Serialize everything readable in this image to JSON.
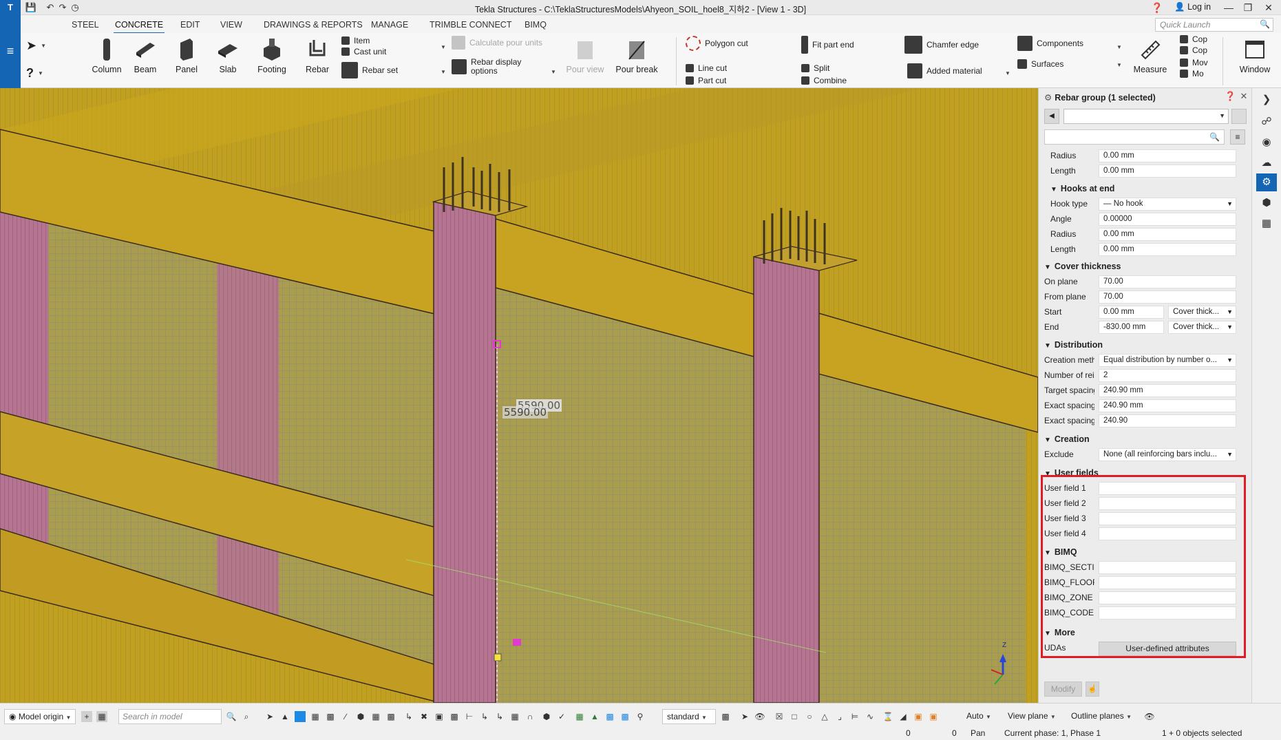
{
  "window": {
    "title": "Tekla Structures - C:\\TeklaStructuresModels\\Ahyeon_SOIL_hoel8_지하2 - [View 1 - 3D]",
    "login_label": "Log in"
  },
  "ribbon": {
    "tabs": [
      "STEEL",
      "CONCRETE",
      "EDIT",
      "VIEW",
      "DRAWINGS & REPORTS",
      "MANAGE",
      "TRIMBLE CONNECT",
      "BIMQ"
    ],
    "active_tab": "CONCRETE",
    "quick_launch_placeholder": "Quick Launch",
    "buttons": {
      "column": "Column",
      "beam": "Beam",
      "panel": "Panel",
      "slab": "Slab",
      "footing": "Footing",
      "rebar": "Rebar",
      "item": "Item",
      "cast_unit": "Cast unit",
      "rebar_set": "Rebar set",
      "calculate_pour_units": "Calculate pour units",
      "rebar_display_options_1": "Rebar display",
      "rebar_display_options_2": "options",
      "pour_view": "Pour view",
      "pour_break": "Pour break",
      "polygon_cut": "Polygon cut",
      "line_cut": "Line cut",
      "part_cut": "Part cut",
      "fit_part_end": "Fit part end",
      "split": "Split",
      "combine": "Combine",
      "chamfer_edge": "Chamfer edge",
      "added_material": "Added material",
      "components": "Components",
      "surfaces": "Surfaces",
      "measure": "Measure",
      "copy_1": "Cop",
      "copy_2": "Cop",
      "move_1": "Mov",
      "move_2": "Mo",
      "window": "Window"
    }
  },
  "viewport": {
    "dimension_label_1": "5590.00",
    "dimension_label_2": "5590.00",
    "axis_z": "Z"
  },
  "properties": {
    "header": "Rebar group (1 selected)",
    "rows_top": [
      {
        "label": "Radius",
        "value": "0.00 mm"
      },
      {
        "label": "Length",
        "value": "0.00 mm"
      }
    ],
    "hooks_at_end": {
      "title": "Hooks at end",
      "hook_type_label": "Hook type",
      "hook_type_value": "— No hook",
      "angle_label": "Angle",
      "angle_value": "0.00000",
      "radius_label": "Radius",
      "radius_value": "0.00 mm",
      "length_label": "Length",
      "length_value": "0.00 mm"
    },
    "cover_thickness": {
      "title": "Cover thickness",
      "on_plane_label": "On plane",
      "on_plane_value": "70.00",
      "from_plane_label": "From plane",
      "from_plane_value": "70.00",
      "start_label": "Start",
      "start_value": "0.00 mm",
      "start_option": "Cover thick...",
      "end_label": "End",
      "end_value": "-830.00 mm",
      "end_option": "Cover thick..."
    },
    "distribution": {
      "title": "Distribution",
      "creation_method_label": "Creation meth",
      "creation_method_value": "Equal distribution by number o...",
      "number_label": "Number of rei",
      "number_value": "2",
      "target_spacing_label": "Target spacing",
      "target_spacing_value": "240.90 mm",
      "exact_spacing_label": "Exact spacing",
      "exact_spacing_value": "240.90 mm",
      "exact_spacing2_label": "Exact spacing",
      "exact_spacing2_value": "240.90"
    },
    "creation": {
      "title": "Creation",
      "exclude_label": "Exclude",
      "exclude_value": "None (all reinforcing bars inclu..."
    },
    "user_fields": {
      "title": "User fields",
      "fields": [
        "User field 1",
        "User field 2",
        "User field 3",
        "User field 4"
      ]
    },
    "bimq": {
      "title": "BIMQ",
      "fields": [
        "BIMQ_SECTIO",
        "BIMQ_FLOOR",
        "BIMQ_ZONE",
        "BIMQ_CODE"
      ]
    },
    "more": {
      "title": "More",
      "udas_label": "UDAs",
      "udas_button": "User-defined attributes"
    },
    "modify_button": "Modify"
  },
  "bottom_toolbar": {
    "model_origin": "Model origin",
    "search_placeholder": "Search in model",
    "standard": "standard",
    "auto": "Auto",
    "view_plane": "View plane",
    "outline_planes": "Outline planes"
  },
  "status_bar": {
    "coord_x": "0",
    "coord_y": "0",
    "mode": "Pan",
    "current_phase": "Current phase: 1, Phase 1",
    "selection": "1 + 0 objects selected"
  },
  "colors": {
    "accent": "#1565b5",
    "highlight": "#e01b24",
    "model_yellow": "#c4a21e",
    "model_magenta": "#b06a8e"
  }
}
